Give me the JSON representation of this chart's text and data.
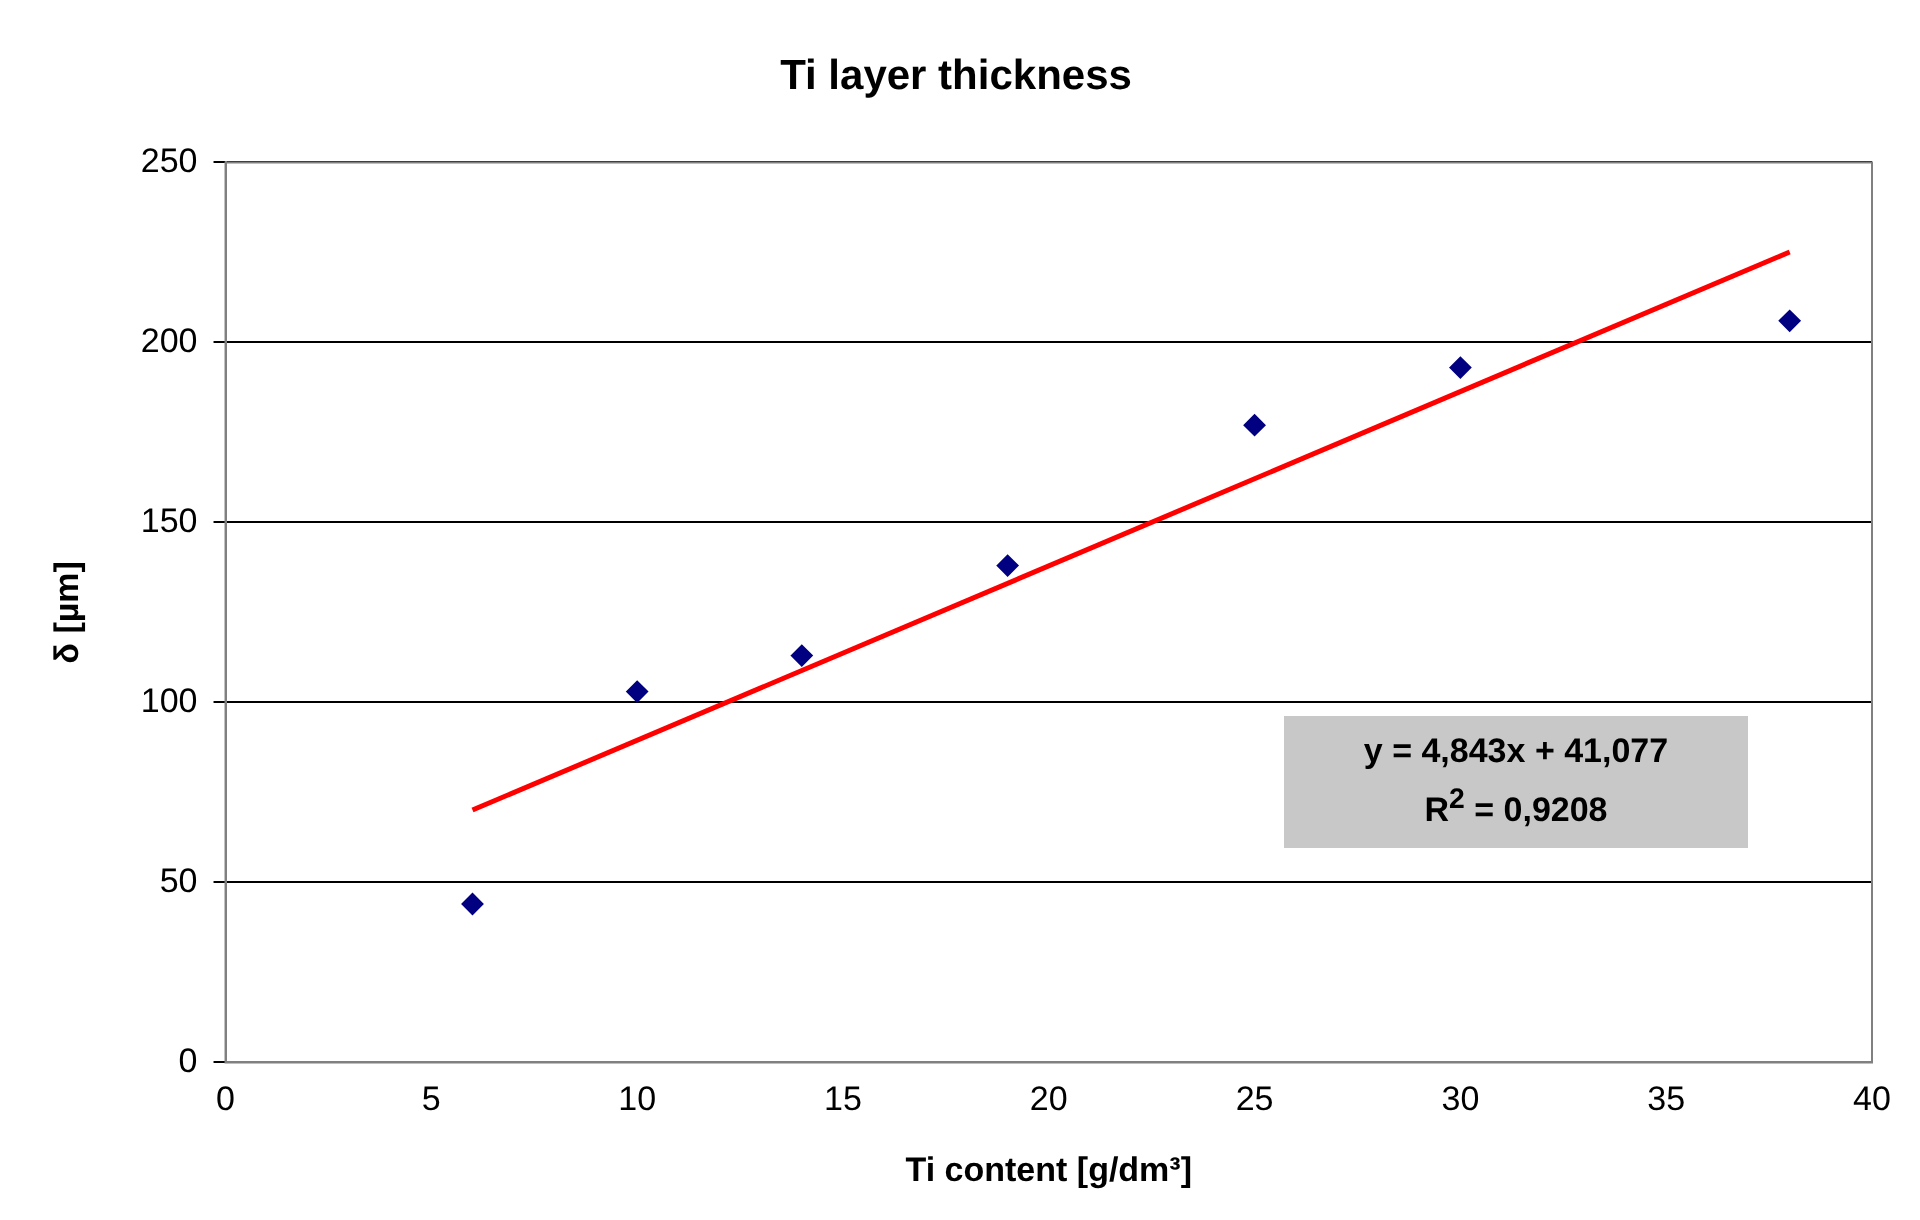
{
  "chart_data": {
    "type": "scatter",
    "title": "Ti layer thickness",
    "xlabel": "Ti content [g/dm³]",
    "ylabel": "δ [µm]",
    "xlim": [
      0,
      40
    ],
    "xticks": [
      0,
      5,
      10,
      15,
      20,
      25,
      30,
      35,
      40
    ],
    "ylim": [
      0,
      250
    ],
    "yticks": [
      0,
      50,
      100,
      150,
      200,
      250
    ],
    "grid": "y",
    "legend": false,
    "marker": "diamond",
    "series": [
      {
        "color": "#000080",
        "x": [
          6,
          10,
          14,
          19,
          25,
          30,
          38
        ],
        "values": [
          44,
          103,
          113,
          138,
          177,
          193,
          206
        ]
      },
      {
        "type": "line",
        "color": "#ff0000",
        "x": [
          6,
          38
        ],
        "values": [
          70.1,
          225.1
        ],
        "marker": "none",
        "line_style": "solid"
      }
    ],
    "annotations": [
      "y = 4,843x + 41,077",
      "R$^{2}$ = 0,9208"
    ]
  }
}
